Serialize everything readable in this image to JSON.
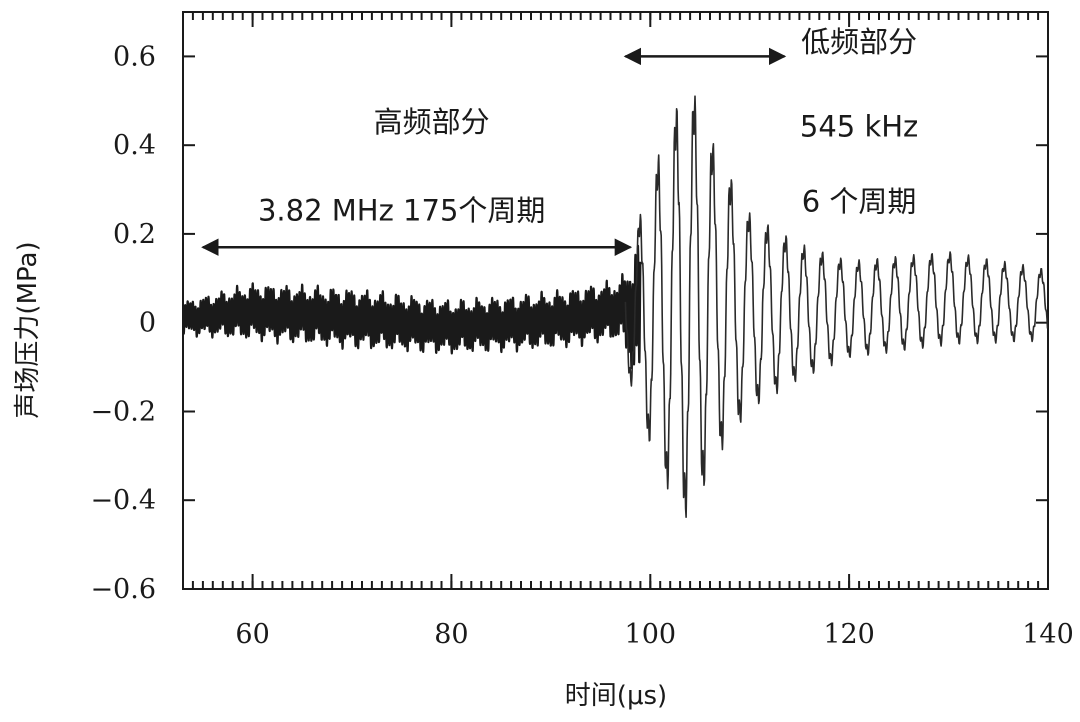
{
  "chart_data": {
    "type": "line",
    "title": "",
    "xlabel": "时间(μs)",
    "ylabel": "声场压力(MPa)",
    "xlim": [
      53,
      140
    ],
    "ylim": [
      -0.6,
      0.7
    ],
    "grid": false,
    "x_ticks": [
      60,
      80,
      100,
      120,
      140
    ],
    "x_tick_labels": [
      "60",
      "80",
      "100",
      "120",
      "140"
    ],
    "y_ticks": [
      0.6,
      0.4,
      0.2,
      0,
      -0.2,
      -0.4,
      -0.6
    ],
    "y_tick_labels": [
      "0.6",
      "0.4",
      "0.2",
      "0",
      "−0.2",
      "−0.4",
      "−0.6"
    ],
    "series": [
      {
        "color": "#1a1a1a",
        "description_segments": [
          {
            "x_start": 53,
            "x_end": 98,
            "frequency_mhz": 3.82,
            "amplitude_mpa": 0.07
          },
          {
            "x_start": 98,
            "x_end": 140,
            "frequency_khz": 545
          }
        ],
        "envelope": {
          "x": [
            53,
            60,
            70,
            80,
            90,
            97,
            99,
            101,
            103,
            104,
            105,
            107,
            110,
            115,
            120,
            130,
            140
          ],
          "max": [
            0.06,
            0.11,
            0.1,
            0.07,
            0.09,
            0.12,
            0.25,
            0.4,
            0.52,
            0.56,
            0.48,
            0.38,
            0.25,
            0.18,
            0.14,
            0.16,
            0.12
          ],
          "min": [
            -0.04,
            -0.06,
            -0.08,
            -0.09,
            -0.08,
            -0.06,
            -0.22,
            -0.35,
            -0.44,
            -0.46,
            -0.4,
            -0.3,
            -0.2,
            -0.13,
            -0.08,
            -0.05,
            -0.04
          ]
        }
      }
    ],
    "annotations": [
      {
        "text": "高频部分",
        "x": 78,
        "y": 0.43
      },
      {
        "text": "3.82 MHz  175个周期",
        "x": 75,
        "y": 0.23
      },
      {
        "text": "低频部分",
        "x": 121,
        "y": 0.61
      },
      {
        "text": "545 kHz",
        "x": 121,
        "y": 0.42
      },
      {
        "text": "6 个周期",
        "x": 121,
        "y": 0.25
      }
    ],
    "arrows": [
      {
        "x_start": 55,
        "x_end": 98,
        "y": 0.17
      },
      {
        "x_start": 97.5,
        "x_end": 113.5,
        "y": 0.6
      }
    ]
  }
}
